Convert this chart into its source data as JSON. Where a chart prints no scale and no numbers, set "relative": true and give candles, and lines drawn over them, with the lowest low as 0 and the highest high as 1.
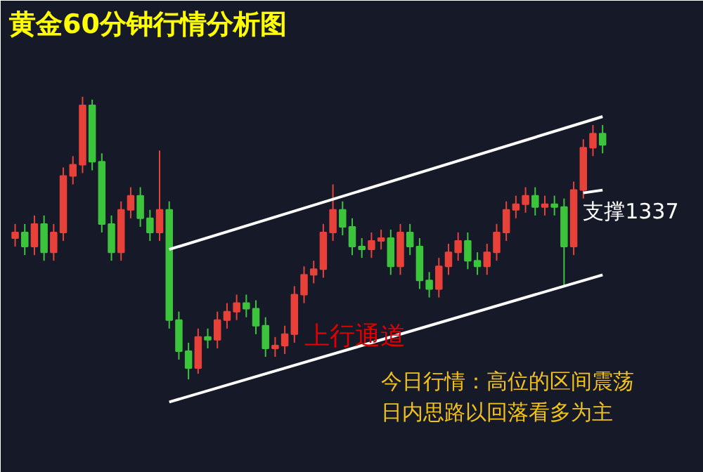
{
  "chart_data": {
    "type": "candlestick",
    "title": "黄金60分钟行情分析图",
    "relative": true,
    "categories": [
      null,
      null,
      null,
      null,
      null,
      null,
      null,
      null,
      null,
      null,
      null,
      null,
      null,
      null,
      null,
      null,
      null,
      null,
      null,
      null,
      null,
      null,
      null,
      null,
      null,
      null,
      null,
      null,
      null,
      null,
      null,
      null,
      null,
      null,
      null,
      null,
      null,
      null,
      null,
      null,
      null,
      null,
      null,
      null,
      null,
      null,
      null,
      null,
      null,
      null,
      null,
      null,
      null,
      null,
      null,
      null,
      null,
      null,
      null,
      null,
      null,
      null
    ],
    "ohlc": [
      [
        0.5,
        0.55,
        0.47,
        0.52
      ],
      [
        0.52,
        0.55,
        0.44,
        0.47
      ],
      [
        0.47,
        0.58,
        0.44,
        0.55
      ],
      [
        0.55,
        0.58,
        0.42,
        0.45
      ],
      [
        0.45,
        0.55,
        0.42,
        0.52
      ],
      [
        0.52,
        0.75,
        0.49,
        0.72
      ],
      [
        0.72,
        0.79,
        0.69,
        0.76
      ],
      [
        0.76,
        1.0,
        0.73,
        0.97
      ],
      [
        0.97,
        0.99,
        0.74,
        0.77
      ],
      [
        0.77,
        0.8,
        0.52,
        0.55
      ],
      [
        0.55,
        0.58,
        0.42,
        0.45
      ],
      [
        0.45,
        0.63,
        0.42,
        0.6
      ],
      [
        0.6,
        0.68,
        0.57,
        0.65
      ],
      [
        0.65,
        0.68,
        0.54,
        0.57
      ],
      [
        0.57,
        0.6,
        0.49,
        0.52
      ],
      [
        0.52,
        0.81,
        0.49,
        0.6
      ],
      [
        0.6,
        0.63,
        0.18,
        0.21
      ],
      [
        0.21,
        0.24,
        0.07,
        0.1
      ],
      [
        0.1,
        0.13,
        0.0,
        0.04
      ],
      [
        0.04,
        0.18,
        0.02,
        0.15
      ],
      [
        0.15,
        0.18,
        0.11,
        0.14
      ],
      [
        0.14,
        0.24,
        0.11,
        0.21
      ],
      [
        0.21,
        0.27,
        0.18,
        0.24
      ],
      [
        0.24,
        0.3,
        0.21,
        0.27
      ],
      [
        0.27,
        0.3,
        0.22,
        0.25
      ],
      [
        0.25,
        0.28,
        0.16,
        0.19
      ],
      [
        0.19,
        0.22,
        0.08,
        0.11
      ],
      [
        0.11,
        0.15,
        0.08,
        0.12
      ],
      [
        0.12,
        0.19,
        0.09,
        0.16
      ],
      [
        0.16,
        0.33,
        0.13,
        0.3
      ],
      [
        0.3,
        0.4,
        0.27,
        0.37
      ],
      [
        0.37,
        0.42,
        0.34,
        0.39
      ],
      [
        0.39,
        0.55,
        0.36,
        0.52
      ],
      [
        0.52,
        0.69,
        0.49,
        0.6
      ],
      [
        0.6,
        0.63,
        0.51,
        0.54
      ],
      [
        0.54,
        0.57,
        0.44,
        0.47
      ],
      [
        0.47,
        0.5,
        0.43,
        0.46
      ],
      [
        0.46,
        0.52,
        0.43,
        0.49
      ],
      [
        0.49,
        0.53,
        0.46,
        0.5
      ],
      [
        0.5,
        0.53,
        0.37,
        0.4
      ],
      [
        0.4,
        0.55,
        0.37,
        0.52
      ],
      [
        0.52,
        0.55,
        0.44,
        0.47
      ],
      [
        0.47,
        0.5,
        0.32,
        0.35
      ],
      [
        0.35,
        0.38,
        0.29,
        0.32
      ],
      [
        0.32,
        0.43,
        0.29,
        0.4
      ],
      [
        0.4,
        0.48,
        0.37,
        0.45
      ],
      [
        0.45,
        0.52,
        0.42,
        0.49
      ],
      [
        0.49,
        0.52,
        0.39,
        0.42
      ],
      [
        0.42,
        0.45,
        0.37,
        0.4
      ],
      [
        0.4,
        0.48,
        0.37,
        0.45
      ],
      [
        0.45,
        0.55,
        0.42,
        0.52
      ],
      [
        0.52,
        0.63,
        0.49,
        0.6
      ],
      [
        0.6,
        0.65,
        0.57,
        0.62
      ],
      [
        0.62,
        0.68,
        0.59,
        0.65
      ],
      [
        0.65,
        0.68,
        0.58,
        0.61
      ],
      [
        0.61,
        0.65,
        0.58,
        0.62
      ],
      [
        0.62,
        0.65,
        0.58,
        0.61
      ],
      [
        0.61,
        0.64,
        0.33,
        0.47
      ],
      [
        0.47,
        0.7,
        0.44,
        0.67
      ],
      [
        0.67,
        0.85,
        0.64,
        0.82
      ],
      [
        0.82,
        0.9,
        0.79,
        0.87
      ],
      [
        0.87,
        0.9,
        0.8,
        0.83
      ]
    ],
    "colors": [
      "#e8413a",
      "#3cc43c",
      "#e8413a",
      "#3cc43c",
      "#e8413a",
      "#e8413a",
      "#e8413a",
      "#e8413a",
      "#3cc43c",
      "#3cc43c",
      "#3cc43c",
      "#e8413a",
      "#e8413a",
      "#3cc43c",
      "#3cc43c",
      "#e8413a",
      "#3cc43c",
      "#3cc43c",
      "#3cc43c",
      "#e8413a",
      "#3cc43c",
      "#e8413a",
      "#e8413a",
      "#e8413a",
      "#3cc43c",
      "#3cc43c",
      "#3cc43c",
      "#e8413a",
      "#e8413a",
      "#e8413a",
      "#e8413a",
      "#e8413a",
      "#e8413a",
      "#e8413a",
      "#3cc43c",
      "#3cc43c",
      "#3cc43c",
      "#e8413a",
      "#e8413a",
      "#3cc43c",
      "#e8413a",
      "#3cc43c",
      "#3cc43c",
      "#3cc43c",
      "#e8413a",
      "#e8413a",
      "#e8413a",
      "#3cc43c",
      "#3cc43c",
      "#e8413a",
      "#e8413a",
      "#e8413a",
      "#e8413a",
      "#e8413a",
      "#3cc43c",
      "#e8413a",
      "#3cc43c",
      "#3cc43c",
      "#e8413a",
      "#e8413a",
      "#e8413a",
      "#3cc43c"
    ],
    "series": [
      {
        "type": "line",
        "color": "#ffffff",
        "values": [
          null,
          null,
          null,
          null,
          null,
          null,
          null,
          null,
          null,
          null,
          null,
          null,
          null,
          null,
          null,
          null,
          0.46,
          null,
          null,
          null,
          null,
          null,
          null,
          null,
          null,
          null,
          null,
          null,
          null,
          null,
          null,
          null,
          null,
          null,
          null,
          null,
          null,
          null,
          null,
          null,
          null,
          null,
          null,
          null,
          null,
          null,
          null,
          null,
          null,
          null,
          null,
          null,
          null,
          null,
          null,
          null,
          null,
          null,
          null,
          null,
          null,
          0.93
        ]
      },
      {
        "type": "line",
        "color": "#ffffff",
        "values": [
          null,
          null,
          null,
          null,
          null,
          null,
          null,
          null,
          null,
          null,
          null,
          null,
          null,
          null,
          null,
          null,
          -0.08,
          null,
          null,
          null,
          null,
          null,
          null,
          null,
          null,
          null,
          null,
          null,
          null,
          null,
          null,
          null,
          null,
          null,
          null,
          null,
          null,
          null,
          null,
          null,
          null,
          null,
          null,
          null,
          null,
          null,
          null,
          null,
          null,
          null,
          null,
          null,
          null,
          null,
          null,
          null,
          null,
          null,
          null,
          null,
          null,
          0.37
        ]
      },
      {
        "type": "line",
        "name": "支撑1337",
        "color": "#ffffff",
        "values": [
          null,
          null,
          null,
          null,
          null,
          null,
          null,
          null,
          null,
          null,
          null,
          null,
          null,
          null,
          null,
          null,
          null,
          null,
          null,
          null,
          null,
          null,
          null,
          null,
          null,
          null,
          null,
          null,
          null,
          null,
          null,
          null,
          null,
          null,
          null,
          null,
          null,
          null,
          null,
          null,
          null,
          null,
          null,
          null,
          null,
          null,
          null,
          null,
          null,
          null,
          null,
          null,
          null,
          null,
          null,
          null,
          null,
          null,
          null,
          0.66,
          null,
          0.67
        ]
      }
    ],
    "annotations": [
      "上行通道",
      "今日行情：高位的区间震荡",
      "日内思路以回落看多为主"
    ]
  }
}
